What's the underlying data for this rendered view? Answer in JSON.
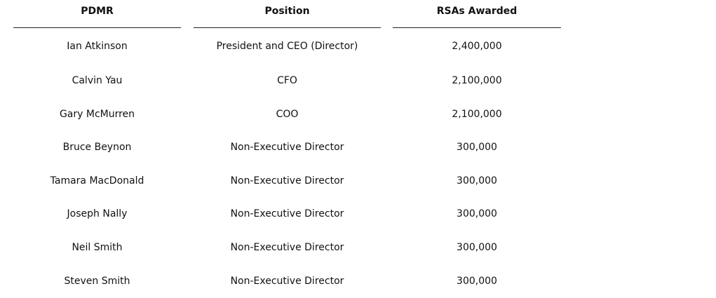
{
  "table": {
    "headers": {
      "pdmr": "PDMR",
      "position": "Position",
      "rsas": "RSAs Awarded"
    },
    "rows": [
      {
        "pdmr": "Ian Atkinson",
        "position": "President and CEO (Director)",
        "rsas": "2,400,000"
      },
      {
        "pdmr": "Calvin Yau",
        "position": "CFO",
        "rsas": "2,100,000"
      },
      {
        "pdmr": "Gary McMurren",
        "position": "COO",
        "rsas": "2,100,000"
      },
      {
        "pdmr": "Bruce Beynon",
        "position": "Non-Executive Director",
        "rsas": "300,000"
      },
      {
        "pdmr": "Tamara MacDonald",
        "position": "Non-Executive Director",
        "rsas": "300,000"
      },
      {
        "pdmr": "Joseph Nally",
        "position": "Non-Executive Director",
        "rsas": "300,000"
      },
      {
        "pdmr": "Neil Smith",
        "position": "Non-Executive Director",
        "rsas": "300,000"
      },
      {
        "pdmr": "Steven Smith",
        "position": "Non-Executive Director",
        "rsas": "300,000"
      }
    ]
  }
}
